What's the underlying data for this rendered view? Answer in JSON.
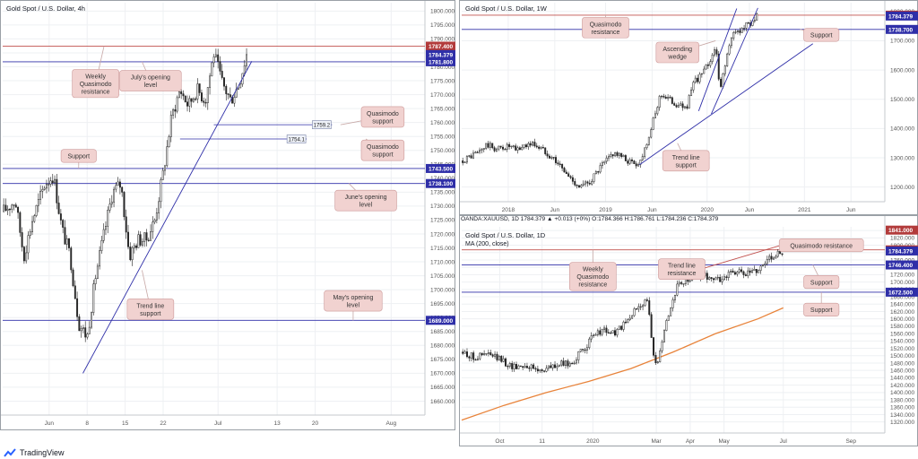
{
  "brand": {
    "name": "TradingView"
  },
  "colors": {
    "up": "#ffffff",
    "down": "#2a2a2a",
    "wick": "#1e1e1e",
    "support": "#2f2fa8",
    "resistance": "#c0504d",
    "ma": "#e8833a",
    "callout_bg": "#f1d2d0",
    "callout_border": "#c99",
    "tag_blue": "#2f2fa8",
    "tag_red": "#b23b3b"
  },
  "panels": [
    {
      "id": "4h",
      "title": "Gold Spot / U.S. Dollar, 4h",
      "subtitle": "",
      "info": "",
      "chart_data": {
        "type": "candlestick",
        "symbol": "Gold Spot / U.S. Dollar",
        "timeframe": "4h",
        "y_range": [
          1655,
          1803
        ],
        "y_ticks": [
          1660,
          1665,
          1670,
          1675,
          1680,
          1685,
          1690,
          1695,
          1700,
          1705,
          1710,
          1715,
          1720,
          1725,
          1730,
          1735,
          1740,
          1745,
          1750,
          1755,
          1760,
          1765,
          1770,
          1775,
          1780,
          1785,
          1790,
          1795,
          1800
        ],
        "x_labels": [
          {
            "label": "Jun",
            "t": 0.11
          },
          {
            "label": "8",
            "t": 0.2
          },
          {
            "label": "15",
            "t": 0.29
          },
          {
            "label": "22",
            "t": 0.38
          },
          {
            "label": "Jul",
            "t": 0.51
          },
          {
            "label": "13",
            "t": 0.65
          },
          {
            "label": "20",
            "t": 0.74
          },
          {
            "label": "Aug",
            "t": 0.92
          }
        ],
        "price_tags": [
          {
            "value": 1787.4,
            "label": "1787.400",
            "color": "#b23b3b"
          },
          {
            "value": 1784.379,
            "label": "1784.379",
            "color": "#2f2fa8"
          },
          {
            "value": 1781.8,
            "label": "1781.800",
            "color": "#2f2fa8"
          },
          {
            "value": 1743.5,
            "label": "1743.500",
            "color": "#2f2fa8"
          },
          {
            "value": 1738.1,
            "label": "1738.100",
            "color": "#2f2fa8"
          },
          {
            "value": 1689.0,
            "label": "1689.000",
            "color": "#2f2fa8"
          }
        ],
        "levels": [
          {
            "value": 1787.4,
            "color": "#c0504d",
            "from": 0
          },
          {
            "value": 1781.8,
            "color": "#2f2fa8",
            "from": 0
          },
          {
            "value": 1743.5,
            "color": "#2f2fa8",
            "from": 0
          },
          {
            "value": 1738.1,
            "color": "#2f2fa8",
            "from": 0
          },
          {
            "value": 1689.0,
            "color": "#2f2fa8",
            "from": 0
          }
        ],
        "short_levels": [
          {
            "value": 1759.2,
            "label": "1759.2",
            "from": 0.5,
            "to": 0.78
          },
          {
            "value": 1754.1,
            "label": "1754.1",
            "from": 0.42,
            "to": 0.72
          }
        ],
        "trendlines": [
          {
            "t1": 0.19,
            "v1": 1670,
            "t2": 0.59,
            "v2": 1782,
            "color": "#2f2fa8"
          }
        ],
        "series": {
          "t_start": 0.0,
          "t_end": 0.58,
          "n": 120,
          "anchors": [
            [
              0,
              1728
            ],
            [
              0.03,
              1732
            ],
            [
              0.05,
              1712
            ],
            [
              0.07,
              1725
            ],
            [
              0.1,
              1738
            ],
            [
              0.12,
              1741
            ],
            [
              0.14,
              1722
            ],
            [
              0.16,
              1712
            ],
            [
              0.18,
              1688
            ],
            [
              0.2,
              1683
            ],
            [
              0.22,
              1705
            ],
            [
              0.24,
              1720
            ],
            [
              0.26,
              1735
            ],
            [
              0.28,
              1738
            ],
            [
              0.3,
              1712
            ],
            [
              0.32,
              1718
            ],
            [
              0.34,
              1718
            ],
            [
              0.36,
              1725
            ],
            [
              0.38,
              1742
            ],
            [
              0.4,
              1762
            ],
            [
              0.42,
              1772
            ],
            [
              0.44,
              1766
            ],
            [
              0.46,
              1772
            ],
            [
              0.48,
              1768
            ],
            [
              0.5,
              1785
            ],
            [
              0.52,
              1774
            ],
            [
              0.54,
              1768
            ],
            [
              0.56,
              1774
            ],
            [
              0.58,
              1786
            ]
          ]
        },
        "annotations": [
          {
            "text": "Weekly\nQuasimodo\nresistance",
            "t": 0.22,
            "v": 1774,
            "pt": 0.24,
            "pv": 1787.4
          },
          {
            "text": "July's opening\nlevel",
            "t": 0.35,
            "v": 1775,
            "pt": 0.33,
            "pv": 1781.8
          },
          {
            "text": "Quasimodo\nsupport",
            "t": 0.9,
            "v": 1762,
            "pt": 0.8,
            "pv": 1759.2
          },
          {
            "text": "Quasimodo\nsupport",
            "t": 0.9,
            "v": 1750,
            "pt": 0.86,
            "pv": 1754.1
          },
          {
            "text": "Support",
            "t": 0.18,
            "v": 1748,
            "pt": 0.18,
            "pv": 1743.5
          },
          {
            "text": "June's opening\nlevel",
            "t": 0.86,
            "v": 1732,
            "pt": 0.82,
            "pv": 1738.1
          },
          {
            "text": "Trend line\nsupport",
            "t": 0.35,
            "v": 1693,
            "pt": 0.33,
            "pv": 1707
          },
          {
            "text": "May's opening\nlevel",
            "t": 0.83,
            "v": 1696,
            "pt": 0.83,
            "pv": 1689
          }
        ]
      }
    },
    {
      "id": "1w",
      "title": "Gold Spot / U.S. Dollar, 1W",
      "subtitle": "",
      "info": "",
      "chart_data": {
        "type": "candlestick",
        "symbol": "Gold Spot / U.S. Dollar",
        "timeframe": "1W",
        "y_range": [
          1150,
          1830
        ],
        "y_ticks": [
          1200,
          1300,
          1400,
          1500,
          1600,
          1700,
          1800
        ],
        "x_labels": [
          {
            "label": "2018",
            "t": 0.11
          },
          {
            "label": "Jun",
            "t": 0.22
          },
          {
            "label": "2019",
            "t": 0.34
          },
          {
            "label": "Jun",
            "t": 0.45
          },
          {
            "label": "2020",
            "t": 0.58
          },
          {
            "label": "Jun",
            "t": 0.68
          },
          {
            "label": "2021",
            "t": 0.81
          },
          {
            "label": "Jun",
            "t": 0.92
          }
        ],
        "price_tags": [
          {
            "value": 1787.4,
            "label": "1787.400",
            "color": "#b23b3b"
          },
          {
            "value": 1784.379,
            "label": "1784.379",
            "color": "#2f2fa8"
          },
          {
            "value": 1738.7,
            "label": "1738.700",
            "color": "#2f2fa8"
          }
        ],
        "levels": [
          {
            "value": 1787.4,
            "color": "#c0504d",
            "from": 0
          },
          {
            "value": 1738.7,
            "color": "#2f2fa8",
            "from": 0
          }
        ],
        "short_levels": [],
        "trendlines": [
          {
            "t1": 0.42,
            "v1": 1276,
            "t2": 0.83,
            "v2": 1690,
            "color": "#2f2fa8"
          },
          {
            "t1": 0.56,
            "v1": 1460,
            "t2": 0.65,
            "v2": 1810,
            "color": "#2f2fa8"
          },
          {
            "t1": 0.59,
            "v1": 1450,
            "t2": 0.7,
            "v2": 1812,
            "color": "#2f2fa8"
          }
        ],
        "series": {
          "t_start": 0.0,
          "t_end": 0.7,
          "n": 140,
          "anchors": [
            [
              0,
              1290
            ],
            [
              0.04,
              1320
            ],
            [
              0.06,
              1345
            ],
            [
              0.08,
              1330
            ],
            [
              0.11,
              1340
            ],
            [
              0.13,
              1325
            ],
            [
              0.15,
              1345
            ],
            [
              0.17,
              1348
            ],
            [
              0.2,
              1320
            ],
            [
              0.22,
              1295
            ],
            [
              0.25,
              1240
            ],
            [
              0.28,
              1200
            ],
            [
              0.3,
              1215
            ],
            [
              0.33,
              1270
            ],
            [
              0.36,
              1320
            ],
            [
              0.38,
              1300
            ],
            [
              0.4,
              1285
            ],
            [
              0.42,
              1280
            ],
            [
              0.45,
              1410
            ],
            [
              0.47,
              1520
            ],
            [
              0.49,
              1500
            ],
            [
              0.51,
              1480
            ],
            [
              0.53,
              1470
            ],
            [
              0.55,
              1560
            ],
            [
              0.57,
              1590
            ],
            [
              0.59,
              1640
            ],
            [
              0.6,
              1690
            ],
            [
              0.61,
              1520
            ],
            [
              0.62,
              1610
            ],
            [
              0.64,
              1720
            ],
            [
              0.66,
              1740
            ],
            [
              0.68,
              1760
            ],
            [
              0.7,
              1785
            ]
          ]
        },
        "annotations": [
          {
            "text": "Quasimodo\nresistance",
            "t": 0.34,
            "v": 1745,
            "pt": 0.34,
            "pv": 1787.4
          },
          {
            "text": "Ascending\nwedge",
            "t": 0.51,
            "v": 1660,
            "pt": 0.6,
            "pv": 1700
          },
          {
            "text": "Support",
            "t": 0.85,
            "v": 1720,
            "pt": 0.8,
            "pv": 1738.7
          },
          {
            "text": "Trend line\nsupport",
            "t": 0.53,
            "v": 1290,
            "pt": 0.51,
            "pv": 1350
          }
        ]
      }
    },
    {
      "id": "1d",
      "title": "Gold Spot / U.S. Dollar, 1D",
      "subtitle": "MA (200, close)",
      "info": "OANDA:XAUUSD, 1D   1784.379 ▲ +0.013 (+0%) O:1784.366 H:1786.761 L:1784.236 C:1784.379",
      "chart_data": {
        "type": "candlestick",
        "symbol": "Gold Spot / U.S. Dollar",
        "timeframe": "1D",
        "y_range": [
          1290,
          1850
        ],
        "y_ticks": [
          1320,
          1340,
          1360,
          1380,
          1400,
          1420,
          1440,
          1460,
          1480,
          1500,
          1520,
          1540,
          1560,
          1580,
          1600,
          1620,
          1640,
          1660,
          1680,
          1700,
          1720,
          1740,
          1760,
          1780,
          1800,
          1820,
          1840
        ],
        "x_labels": [
          {
            "label": "Oct",
            "t": 0.09
          },
          {
            "label": "11",
            "t": 0.19
          },
          {
            "label": "2020",
            "t": 0.31
          },
          {
            "label": "Mar",
            "t": 0.46
          },
          {
            "label": "Apr",
            "t": 0.54
          },
          {
            "label": "May",
            "t": 0.62
          },
          {
            "label": "Jul",
            "t": 0.76
          },
          {
            "label": "Sep",
            "t": 0.92
          }
        ],
        "price_tags": [
          {
            "value": 1841.0,
            "label": "1841.000",
            "color": "#b23b3b"
          },
          {
            "value": 1787.4,
            "label": "1787.400",
            "color": "#b23b3b"
          },
          {
            "value": 1784.379,
            "label": "1784.379",
            "color": "#2f2fa8"
          },
          {
            "value": 1746.4,
            "label": "1746.400",
            "color": "#2f2fa8"
          },
          {
            "value": 1672.5,
            "label": "1672.500",
            "color": "#2f2fa8"
          }
        ],
        "levels": [
          {
            "value": 1787.4,
            "color": "#c0504d",
            "from": 0
          },
          {
            "value": 1746.4,
            "color": "#2f2fa8",
            "from": 0
          },
          {
            "value": 1672.5,
            "color": "#2f2fa8",
            "from": 0
          }
        ],
        "short_levels": [],
        "trendlines": [
          {
            "t1": 0.55,
            "v1": 1730,
            "t2": 0.77,
            "v2": 1805,
            "color": "#c0504d"
          }
        ],
        "ma_line": {
          "label": "MA (200, close)",
          "points": [
            [
              0,
              1325
            ],
            [
              0.1,
              1365
            ],
            [
              0.2,
              1400
            ],
            [
              0.3,
              1430
            ],
            [
              0.4,
              1465
            ],
            [
              0.5,
              1510
            ],
            [
              0.6,
              1560
            ],
            [
              0.7,
              1600
            ],
            [
              0.76,
              1630
            ]
          ]
        },
        "series": {
          "t_start": 0.0,
          "t_end": 0.76,
          "n": 150,
          "anchors": [
            [
              0,
              1510
            ],
            [
              0.03,
              1495
            ],
            [
              0.06,
              1505
            ],
            [
              0.09,
              1490
            ],
            [
              0.12,
              1470
            ],
            [
              0.15,
              1475
            ],
            [
              0.18,
              1460
            ],
            [
              0.2,
              1465
            ],
            [
              0.23,
              1475
            ],
            [
              0.26,
              1480
            ],
            [
              0.29,
              1520
            ],
            [
              0.31,
              1550
            ],
            [
              0.33,
              1570
            ],
            [
              0.36,
              1560
            ],
            [
              0.39,
              1590
            ],
            [
              0.42,
              1640
            ],
            [
              0.44,
              1650
            ],
            [
              0.45,
              1520
            ],
            [
              0.46,
              1470
            ],
            [
              0.47,
              1530
            ],
            [
              0.49,
              1620
            ],
            [
              0.51,
              1690
            ],
            [
              0.53,
              1700
            ],
            [
              0.55,
              1720
            ],
            [
              0.58,
              1715
            ],
            [
              0.61,
              1705
            ],
            [
              0.64,
              1730
            ],
            [
              0.67,
              1720
            ],
            [
              0.7,
              1735
            ],
            [
              0.73,
              1770
            ],
            [
              0.76,
              1784
            ]
          ]
        },
        "annotations": [
          {
            "text": "Quasimodo resistance",
            "t": 0.85,
            "v": 1800,
            "pt": 0.79,
            "pv": 1787.4
          },
          {
            "text": "Weekly\nQuasimodo\nresistance",
            "t": 0.31,
            "v": 1715,
            "pt": 0.31,
            "pv": 1787.4
          },
          {
            "text": "Trend line\nresistance",
            "t": 0.52,
            "v": 1735,
            "pt": 0.57,
            "pv": 1748
          },
          {
            "text": "Support",
            "t": 0.85,
            "v": 1700,
            "pt": 0.83,
            "pv": 1746.4
          },
          {
            "text": "Support",
            "t": 0.85,
            "v": 1625,
            "pt": 0.85,
            "pv": 1672.5
          }
        ]
      }
    }
  ]
}
